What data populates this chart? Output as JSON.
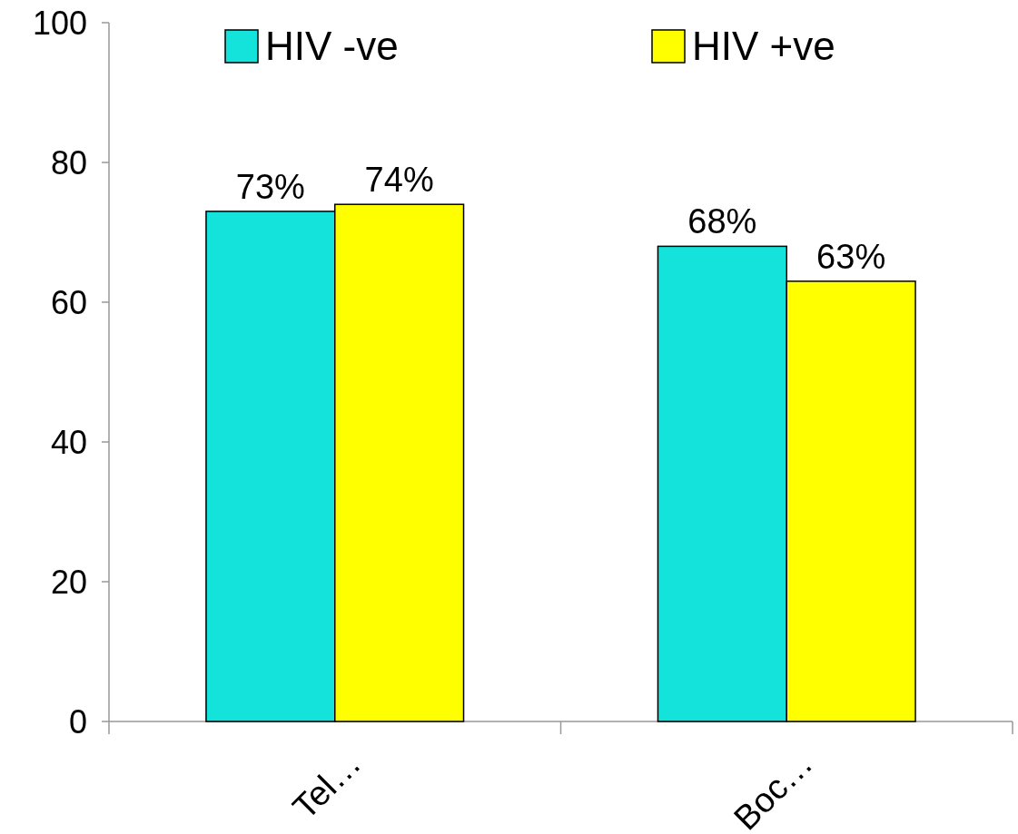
{
  "chart_data": {
    "type": "bar",
    "categories": [
      "Tel…",
      "Boc…"
    ],
    "series": [
      {
        "name": "HIV -ve",
        "color": "#13e3da",
        "values": [
          73,
          68
        ],
        "value_labels": [
          "73%",
          "68%"
        ]
      },
      {
        "name": "HIV +ve",
        "color": "#ffff00",
        "values": [
          74,
          63
        ],
        "value_labels": [
          "74%",
          "63%"
        ]
      }
    ],
    "ylim": [
      0,
      100
    ],
    "yticks": [
      0,
      20,
      40,
      60,
      80,
      100
    ],
    "grid": false,
    "legend": "top"
  }
}
